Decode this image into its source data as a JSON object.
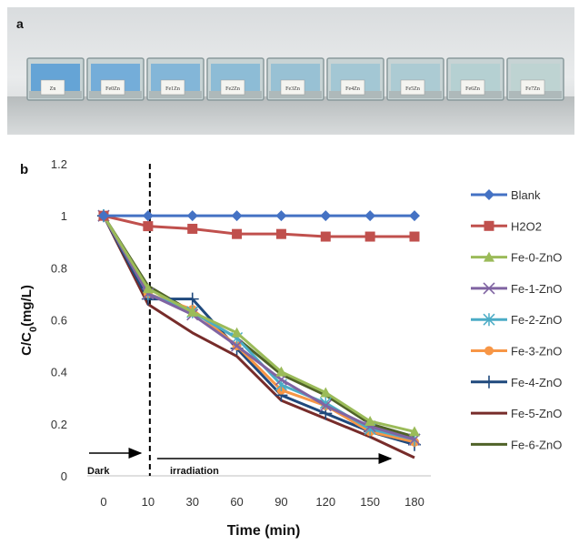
{
  "panel_a": {
    "label": "a",
    "tray_labels": [
      "Zn",
      "Fe0Zn",
      "Fe1Zn",
      "Fe2Zn",
      "Fe3Zn",
      "Fe4Zn",
      "Fe5Zn",
      "Fe6Zn",
      "Fe7Zn"
    ]
  },
  "panel_b": {
    "label": "b"
  },
  "chart_data": {
    "type": "line",
    "xlabel": "Time (min)",
    "ylabel": "C/C0(mg/L)",
    "categories": [
      "0",
      "10",
      "30",
      "60",
      "90",
      "120",
      "150",
      "180"
    ],
    "yticks": [
      "0",
      "0.2",
      "0.4",
      "0.6",
      "0.8",
      "1",
      "1.2"
    ],
    "ylim": [
      0,
      1.2
    ],
    "grid": false,
    "legend_position": "right",
    "annotations": {
      "dark": "Dark",
      "irradiation": "irradiation"
    },
    "dashed_line_at": "10",
    "series": [
      {
        "name": "Blank",
        "color": "#4472C4",
        "marker": "diamond",
        "values": [
          1,
          1,
          1,
          1,
          1,
          1,
          1,
          1
        ]
      },
      {
        "name": "H2O2",
        "color": "#C0504D",
        "marker": "square",
        "values": [
          1,
          0.96,
          0.95,
          0.93,
          0.93,
          0.92,
          0.92,
          0.92
        ]
      },
      {
        "name": "Fe-0-ZnO",
        "color": "#9BBB59",
        "marker": "triangle",
        "values": [
          1,
          0.72,
          0.63,
          0.55,
          0.4,
          0.32,
          0.21,
          0.17
        ]
      },
      {
        "name": "Fe-1-ZnO",
        "color": "#8064A2",
        "marker": "x",
        "values": [
          1,
          0.7,
          0.62,
          0.5,
          0.37,
          0.27,
          0.19,
          0.14
        ]
      },
      {
        "name": "Fe-2-ZnO",
        "color": "#4BACC6",
        "marker": "asterisk",
        "values": [
          1,
          0.7,
          0.63,
          0.53,
          0.35,
          0.28,
          0.18,
          0.14
        ]
      },
      {
        "name": "Fe-3-ZnO",
        "color": "#F79646",
        "marker": "circle",
        "values": [
          1,
          0.7,
          0.64,
          0.5,
          0.33,
          0.27,
          0.17,
          0.13
        ]
      },
      {
        "name": "Fe-4-ZnO",
        "color": "#1F497D",
        "marker": "plus",
        "values": [
          1,
          0.68,
          0.68,
          0.49,
          0.31,
          0.24,
          0.17,
          0.12
        ]
      },
      {
        "name": "Fe-5-ZnO",
        "color": "#772C2A",
        "marker": "none",
        "values": [
          1,
          0.66,
          0.55,
          0.46,
          0.29,
          0.22,
          0.15,
          0.07
        ]
      },
      {
        "name": "Fe-6-ZnO",
        "color": "#4F6228",
        "marker": "none",
        "values": [
          1,
          0.73,
          0.63,
          0.53,
          0.39,
          0.31,
          0.2,
          0.15
        ]
      }
    ]
  }
}
